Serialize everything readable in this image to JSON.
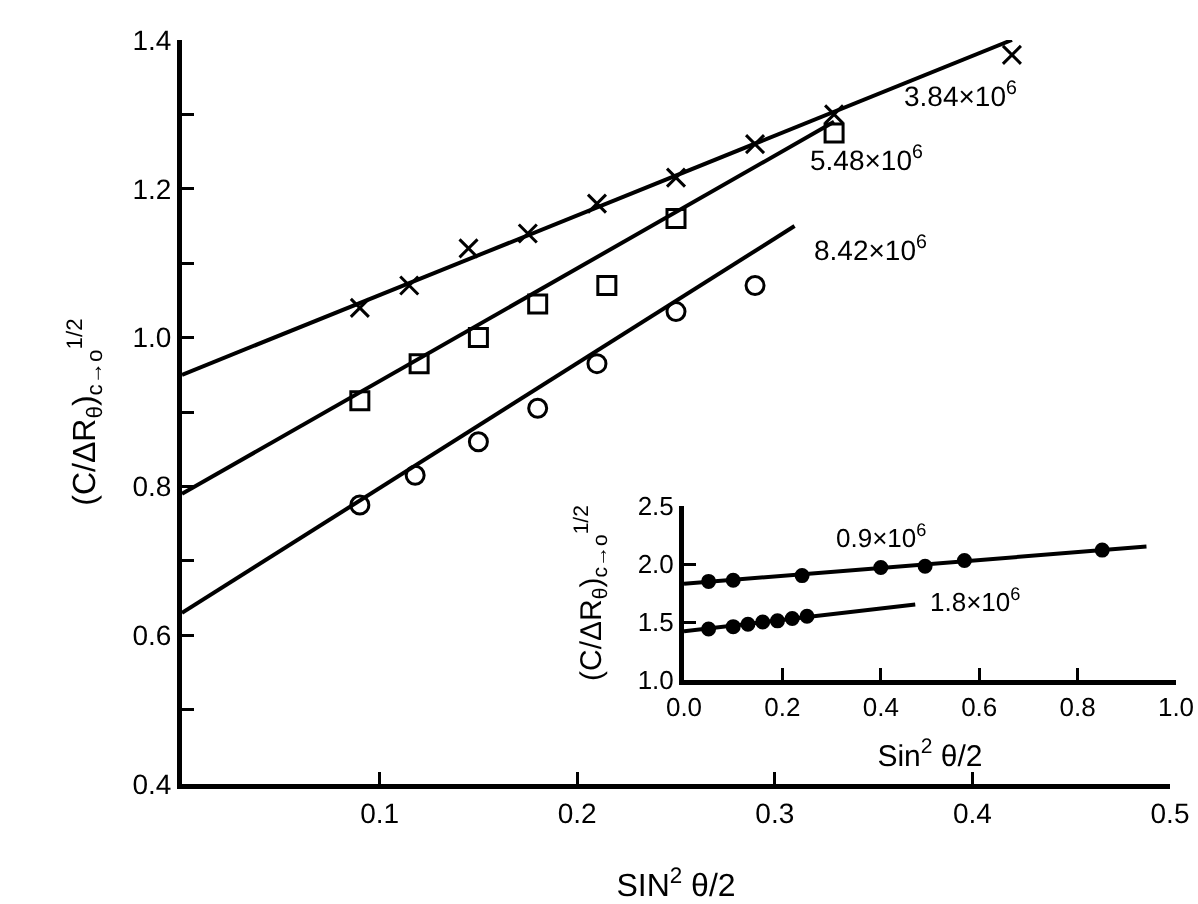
{
  "chart_data": [
    {
      "type": "scatter",
      "xlabel": "SIN$^{2}$ θ/2",
      "ylabel": "(C/ΔR$_{θ}$)$_{c→o}$$^{1/2}$",
      "xlim": [
        0,
        0.5
      ],
      "xticks": [
        0.1,
        0.2,
        0.3,
        0.4,
        0.5
      ],
      "ylim": [
        0.4,
        1.4
      ],
      "yticks": [
        0.4,
        {
          "value": 0.5,
          "label": null
        },
        0.6,
        {
          "value": 0.7,
          "label": null
        },
        0.8,
        {
          "value": 0.9,
          "label": null
        },
        {
          "value": 1,
          "label": "1.0"
        },
        {
          "value": 1.1,
          "label": null
        },
        1.2,
        {
          "value": 1.3,
          "label": null
        },
        1.4
      ],
      "grid": false,
      "series": [
        {
          "type": "scatter",
          "marker": "cross",
          "color": "#000000",
          "x": [
            0.09,
            0.115,
            0.145,
            0.175,
            0.21,
            0.25,
            0.29,
            0.33,
            0.42
          ],
          "values": [
            1.04,
            1.07,
            1.12,
            1.14,
            1.18,
            1.215,
            1.26,
            1.3,
            1.38
          ]
        },
        {
          "type": "scatter",
          "marker": "square",
          "color": "#000000",
          "x": [
            0.09,
            0.12,
            0.15,
            0.18,
            0.215,
            0.25,
            0.33
          ],
          "values": [
            0.915,
            0.965,
            1.0,
            1.045,
            1.07,
            1.16,
            1.275
          ]
        },
        {
          "type": "scatter",
          "marker": "circle",
          "color": "#000000",
          "x": [
            0.09,
            0.118,
            0.15,
            0.18,
            0.21,
            0.25,
            0.29
          ],
          "values": [
            0.775,
            0.815,
            0.86,
            0.905,
            0.965,
            1.035,
            1.07
          ]
        },
        {
          "type": "line",
          "color": "#000000",
          "x": [
            0,
            0.42
          ],
          "values": [
            0.95,
            1.4
          ]
        },
        {
          "type": "line",
          "color": "#000000",
          "x": [
            0,
            0.33
          ],
          "values": [
            0.79,
            1.29
          ]
        },
        {
          "type": "line",
          "color": "#000000",
          "x": [
            0,
            0.31
          ],
          "values": [
            0.63,
            1.15
          ]
        }
      ],
      "annotations": [
        "3.84×10$^{6}$",
        "5.48×10$^{6}$",
        "8.42×10$^{6}$"
      ]
    },
    {
      "type": "scatter",
      "xlabel": "Sin$^{2}$ θ/2",
      "ylabel": "(C/ΔR$_{θ}$)$_{c→o}$$^{1/2}$",
      "xlim": [
        0,
        1.0
      ],
      "xticks": [
        {
          "value": 0,
          "label": "0.0"
        },
        0.2,
        0.4,
        0.6,
        0.8,
        {
          "value": 1,
          "label": "1.0"
        }
      ],
      "ylim": [
        1.0,
        2.5
      ],
      "yticks": [
        {
          "value": 1,
          "label": "1.0"
        },
        1.5,
        {
          "value": 2,
          "label": "2.0"
        },
        2.5
      ],
      "grid": false,
      "series": [
        {
          "type": "scatter",
          "marker": "circle",
          "color": "#000000",
          "x": [
            0.05,
            0.1,
            0.24,
            0.4,
            0.49,
            0.57,
            0.85
          ],
          "values": [
            1.85,
            1.86,
            1.9,
            1.97,
            1.98,
            2.03,
            2.12
          ]
        },
        {
          "type": "scatter",
          "marker": "circle",
          "color": "#000000",
          "x": [
            0.05,
            0.1,
            0.13,
            0.16,
            0.19,
            0.22,
            0.25
          ],
          "values": [
            1.44,
            1.46,
            1.48,
            1.5,
            1.51,
            1.53,
            1.55
          ]
        },
        {
          "type": "line",
          "color": "#000000",
          "x": [
            0,
            0.94
          ],
          "values": [
            1.83,
            2.15
          ]
        },
        {
          "type": "line",
          "color": "#000000",
          "x": [
            0,
            0.47
          ],
          "values": [
            1.42,
            1.65
          ]
        }
      ],
      "annotations": [
        "0.9×10$^{6}$",
        "1.8×10$^{6}$"
      ]
    }
  ]
}
